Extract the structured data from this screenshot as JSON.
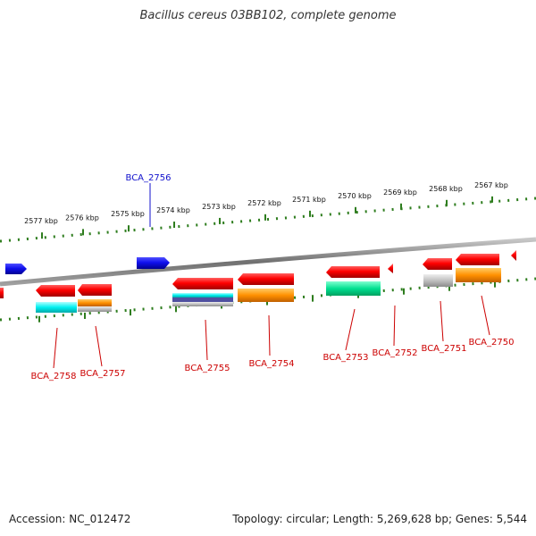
{
  "title": "Bacillus cereus 03BB102, complete genome",
  "accession": "Accession: NC_012472",
  "topology": "Topology: circular; Length: 5,269,628 bp; Genes: 5,544",
  "kbp_labels": [
    "2577 kbp",
    "2576 kbp",
    "2575 kbp",
    "2574 kbp",
    "2573 kbp",
    "2572 kbp",
    "2571 kbp",
    "2570 kbp",
    "2569 kbp",
    "2568 kbp",
    "2567 kbp"
  ],
  "genes_forward": [
    {
      "label": "BCA_2756",
      "color": "#1010cc"
    }
  ],
  "genes_reverse": [
    {
      "label": "BCA_2758",
      "color": "#cc0000"
    },
    {
      "label": "BCA_2757",
      "color": "#cc0000"
    },
    {
      "label": "BCA_2755",
      "color": "#cc0000"
    },
    {
      "label": "BCA_2754",
      "color": "#cc0000"
    },
    {
      "label": "BCA_2753",
      "color": "#cc0000"
    },
    {
      "label": "BCA_2752",
      "color": "#cc0000"
    },
    {
      "label": "BCA_2751",
      "color": "#cc0000"
    },
    {
      "label": "BCA_2750",
      "color": "#cc0000"
    }
  ],
  "colors": {
    "tick": "#2e7d1e",
    "backbone": "#7a7a7a",
    "forward_gene": "#1010e0",
    "reverse_gene": "#e00000",
    "cyan": "#00e5e5",
    "orange": "#ff8c00",
    "gray": "#bdbdbd",
    "green": "#00d080",
    "purple": "#5050a0"
  }
}
